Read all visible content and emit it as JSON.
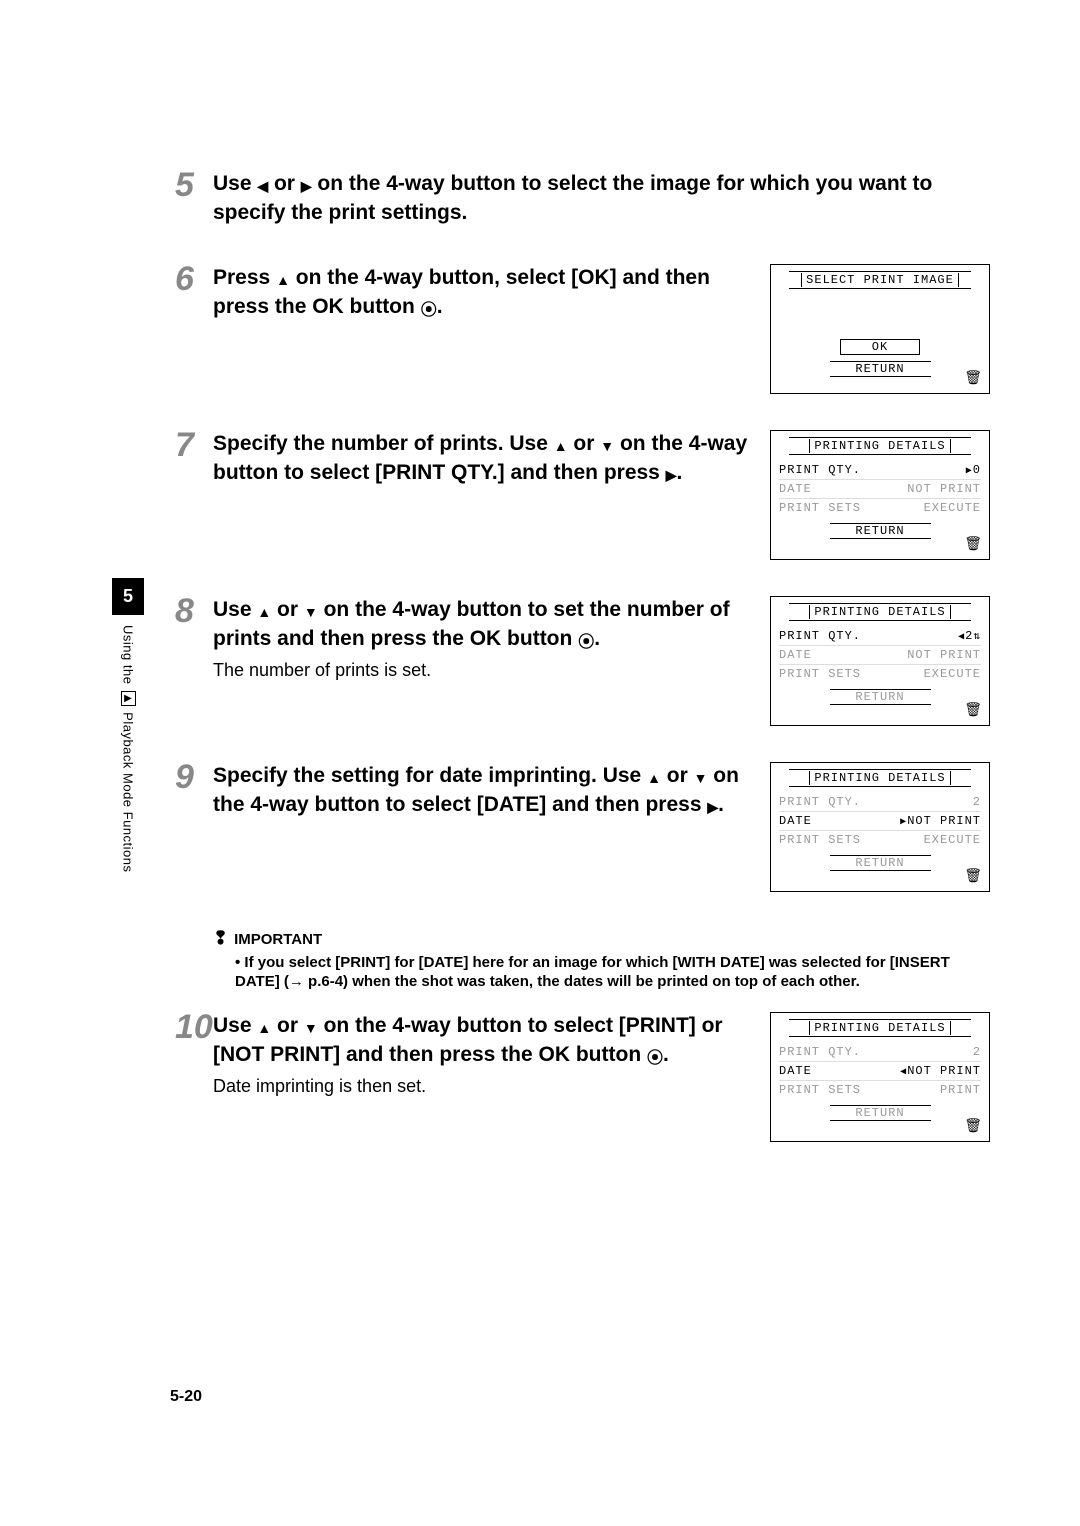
{
  "sidebar": {
    "chapter_num": "5",
    "label_before": "Using the ",
    "play_icon": "▶",
    "label_after": " Playback Mode Functions"
  },
  "steps": {
    "s5": {
      "num": "5",
      "line1": "Use ",
      "line2": " or ",
      "line3": " on the 4-way button to select the image for which you want to specify the print settings."
    },
    "s6": {
      "num": "6",
      "line1": "Press ",
      "line2": " on the 4-way button, select [OK] and then press the OK button ",
      "line3": "."
    },
    "s7": {
      "num": "7",
      "line1": "Specify the number of prints. Use ",
      "line2": " or ",
      "line3": " on the 4-way button to select [PRINT QTY.] and then press ",
      "line4": "."
    },
    "s8": {
      "num": "8",
      "line1": "Use ",
      "line2": " or ",
      "line3": " on the 4-way button to set the number of prints and then press the OK button ",
      "line4": ".",
      "sub": "The number of prints is set."
    },
    "s9": {
      "num": "9",
      "line1": "Specify the setting for date imprinting. Use ",
      "line2": " or ",
      "line3": " on the 4-way button to select [DATE] and then press ",
      "line4": "."
    },
    "s10": {
      "num": "10",
      "line1": "Use ",
      "line2": " or ",
      "line3": " on the 4-way button to select [PRINT] or [NOT PRINT] and then press the OK button ",
      "line4": ".",
      "sub": "Date imprinting is then set."
    }
  },
  "important": {
    "heading": "IMPORTANT",
    "text": "• If you select [PRINT] for [DATE] here for an image for which [WITH DATE] was selected for [INSERT DATE] (→ p.6-4) when the shot was taken, the dates will be printed on top of each other."
  },
  "lcd6": {
    "title": "SELECT PRINT IMAGE",
    "ok": "OK",
    "return": "RETURN"
  },
  "lcd7": {
    "title": "PRINTING DETAILS",
    "r1l": "PRINT QTY.",
    "r1r": "0",
    "r2l": "DATE",
    "r2r": "NOT PRINT",
    "r3l": "PRINT SETS",
    "r3r": "EXECUTE",
    "return": "RETURN"
  },
  "lcd8": {
    "title": "PRINTING DETAILS",
    "r1l": "PRINT QTY.",
    "r1r": "2",
    "r2l": "DATE",
    "r2r": "NOT PRINT",
    "r3l": "PRINT SETS",
    "r3r": "EXECUTE",
    "return": "RETURN"
  },
  "lcd9": {
    "title": "PRINTING DETAILS",
    "r1l": "PRINT QTY.",
    "r1r": "2",
    "r2l": "DATE",
    "r2r": "NOT PRINT",
    "r3l": "PRINT SETS",
    "r3r": "EXECUTE",
    "return": "RETURN"
  },
  "lcd10": {
    "title": "PRINTING DETAILS",
    "r1l": "PRINT QTY.",
    "r1r": "2",
    "r2l": "DATE",
    "r2r": "NOT PRINT",
    "r3l": "PRINT SETS",
    "r3r": "PRINT",
    "return": "RETURN"
  },
  "page_number": "5-20"
}
